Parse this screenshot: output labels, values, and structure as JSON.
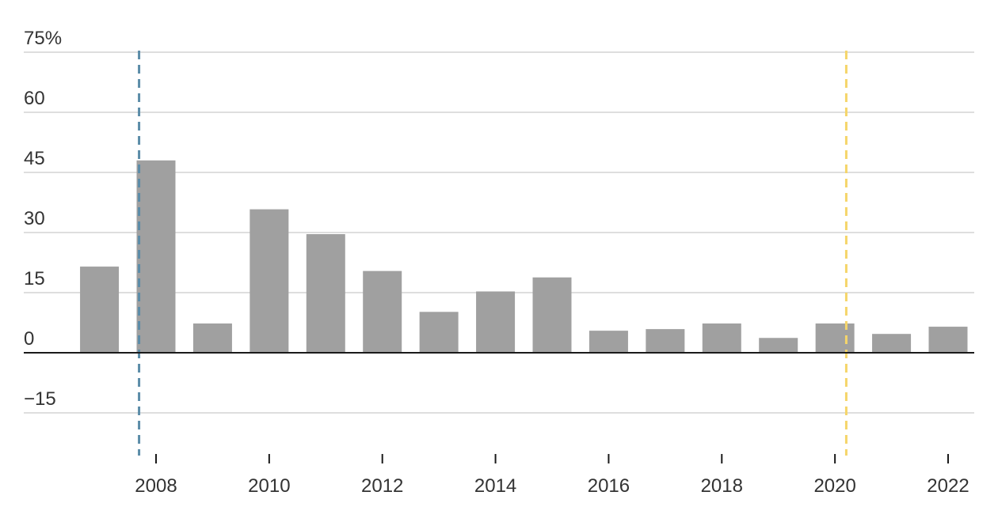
{
  "chart_data": {
    "type": "bar",
    "title": "",
    "xlabel": "",
    "ylabel": "",
    "unit_suffix": "%",
    "categories": [
      "2007",
      "2008",
      "2009",
      "2010",
      "2011",
      "2012",
      "2013",
      "2014",
      "2015",
      "2016",
      "2017",
      "2018",
      "2019",
      "2020",
      "2021",
      "2022"
    ],
    "values": [
      21.5,
      48,
      7.3,
      35.8,
      29.6,
      20.4,
      10.2,
      15.3,
      18.8,
      5.5,
      5.9,
      7.3,
      3.7,
      7.3,
      4.7,
      6.5
    ],
    "ylim": [
      -25,
      75
    ],
    "y_ticks": [
      75,
      60,
      45,
      30,
      15,
      0,
      -15
    ],
    "y_tick_labels": [
      "75%",
      "60",
      "45",
      "30",
      "15",
      "0",
      "−15"
    ],
    "x_tick_labels": [
      "2008",
      "2010",
      "2012",
      "2014",
      "2016",
      "2018",
      "2020",
      "2022"
    ],
    "reference_lines": [
      {
        "x": 2007.7,
        "style": "dashed",
        "color": "#5b8ca8"
      },
      {
        "x": 2020.2,
        "style": "dashed",
        "color": "#f5d56a"
      }
    ],
    "bar_color": "#a0a0a0",
    "grid": true,
    "legend": "none"
  }
}
